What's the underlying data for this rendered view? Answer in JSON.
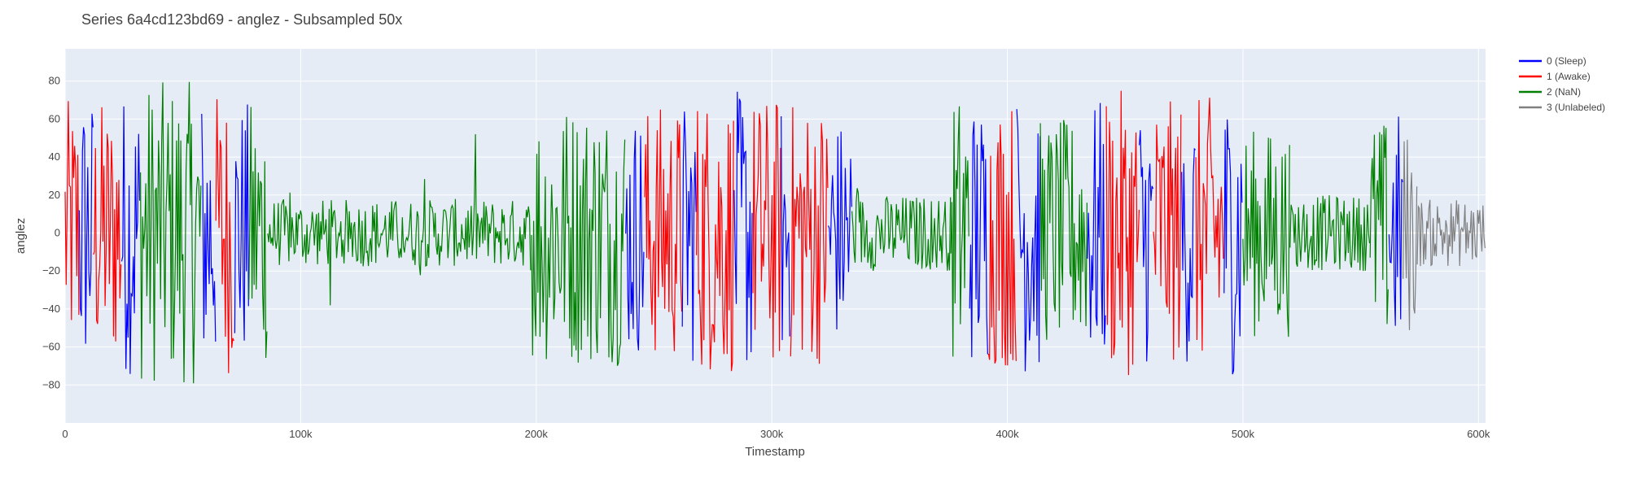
{
  "chart_data": {
    "type": "line",
    "title": "Series 6a4cd123bd69 - anglez - Subsampled 50x",
    "xlabel": "Timestamp",
    "ylabel": "anglez",
    "xlim": [
      0,
      603000
    ],
    "ylim": [
      -100,
      97
    ],
    "x_ticks": [
      0,
      100000,
      200000,
      300000,
      400000,
      500000,
      600000
    ],
    "x_tick_labels": [
      "0",
      "100k",
      "200k",
      "300k",
      "400k",
      "500k",
      "600k"
    ],
    "y_ticks": [
      -80,
      -60,
      -40,
      -20,
      0,
      20,
      40,
      60,
      80
    ],
    "y_tick_labels": [
      "−80",
      "−60",
      "−40",
      "−20",
      "0",
      "20",
      "40",
      "60",
      "80"
    ],
    "grid": true,
    "legend_position": "top-right",
    "series": [
      {
        "name": "0 (Sleep)",
        "color": "#0000ff"
      },
      {
        "name": "1 (Awake)",
        "color": "#ff0000"
      },
      {
        "name": "2 (NaN)",
        "color": "#008000"
      },
      {
        "name": "3 (Unlabeled)",
        "color": "#808080"
      }
    ],
    "segments": [
      {
        "series": 1,
        "x_start": 0,
        "x_end": 6000,
        "amplitude": 70
      },
      {
        "series": 0,
        "x_start": 6000,
        "x_end": 12000,
        "amplitude": 75
      },
      {
        "series": 1,
        "x_start": 12000,
        "x_end": 24000,
        "amplitude": 70
      },
      {
        "series": 0,
        "x_start": 24000,
        "x_end": 32000,
        "amplitude": 75
      },
      {
        "series": 2,
        "x_start": 32000,
        "x_end": 58000,
        "amplitude": 80
      },
      {
        "series": 0,
        "x_start": 58000,
        "x_end": 64000,
        "amplitude": 75
      },
      {
        "series": 1,
        "x_start": 64000,
        "x_end": 72000,
        "amplitude": 75
      },
      {
        "series": 0,
        "x_start": 72000,
        "x_end": 78000,
        "amplitude": 70
      },
      {
        "series": 2,
        "x_start": 78000,
        "x_end": 86000,
        "amplitude": 70
      },
      {
        "series": 2,
        "x_start": 86000,
        "x_end": 198000,
        "amplitude": 18
      },
      {
        "series": 2,
        "x_start": 198000,
        "x_end": 238000,
        "amplitude": 70
      },
      {
        "series": 0,
        "x_start": 238000,
        "x_end": 246000,
        "amplitude": 65
      },
      {
        "series": 1,
        "x_start": 246000,
        "x_end": 262000,
        "amplitude": 68
      },
      {
        "series": 0,
        "x_start": 262000,
        "x_end": 268000,
        "amplitude": 70
      },
      {
        "series": 1,
        "x_start": 268000,
        "x_end": 284000,
        "amplitude": 75
      },
      {
        "series": 0,
        "x_start": 284000,
        "x_end": 292000,
        "amplitude": 75
      },
      {
        "series": 1,
        "x_start": 292000,
        "x_end": 304000,
        "amplitude": 72
      },
      {
        "series": 0,
        "x_start": 304000,
        "x_end": 308000,
        "amplitude": 70
      },
      {
        "series": 1,
        "x_start": 308000,
        "x_end": 324000,
        "amplitude": 70
      },
      {
        "series": 0,
        "x_start": 324000,
        "x_end": 334000,
        "amplitude": 60
      },
      {
        "series": 2,
        "x_start": 334000,
        "x_end": 376000,
        "amplitude": 20
      },
      {
        "series": 2,
        "x_start": 376000,
        "x_end": 384000,
        "amplitude": 75
      },
      {
        "series": 0,
        "x_start": 384000,
        "x_end": 392000,
        "amplitude": 70
      },
      {
        "series": 1,
        "x_start": 392000,
        "x_end": 404000,
        "amplitude": 72
      },
      {
        "series": 0,
        "x_start": 404000,
        "x_end": 414000,
        "amplitude": 75
      },
      {
        "series": 2,
        "x_start": 414000,
        "x_end": 434000,
        "amplitude": 60
      },
      {
        "series": 0,
        "x_start": 434000,
        "x_end": 442000,
        "amplitude": 70
      },
      {
        "series": 1,
        "x_start": 442000,
        "x_end": 456000,
        "amplitude": 75
      },
      {
        "series": 0,
        "x_start": 456000,
        "x_end": 462000,
        "amplitude": 70
      },
      {
        "series": 1,
        "x_start": 462000,
        "x_end": 474000,
        "amplitude": 70
      },
      {
        "series": 0,
        "x_start": 474000,
        "x_end": 480000,
        "amplitude": 70
      },
      {
        "series": 1,
        "x_start": 480000,
        "x_end": 492000,
        "amplitude": 72
      },
      {
        "series": 0,
        "x_start": 492000,
        "x_end": 500000,
        "amplitude": 75
      },
      {
        "series": 2,
        "x_start": 500000,
        "x_end": 520000,
        "amplitude": 55
      },
      {
        "series": 2,
        "x_start": 520000,
        "x_end": 554000,
        "amplitude": 20
      },
      {
        "series": 2,
        "x_start": 554000,
        "x_end": 562000,
        "amplitude": 60
      },
      {
        "series": 0,
        "x_start": 562000,
        "x_end": 568000,
        "amplitude": 65
      },
      {
        "series": 3,
        "x_start": 568000,
        "x_end": 574000,
        "amplitude": 55
      },
      {
        "series": 3,
        "x_start": 574000,
        "x_end": 603000,
        "amplitude": 18
      }
    ]
  }
}
